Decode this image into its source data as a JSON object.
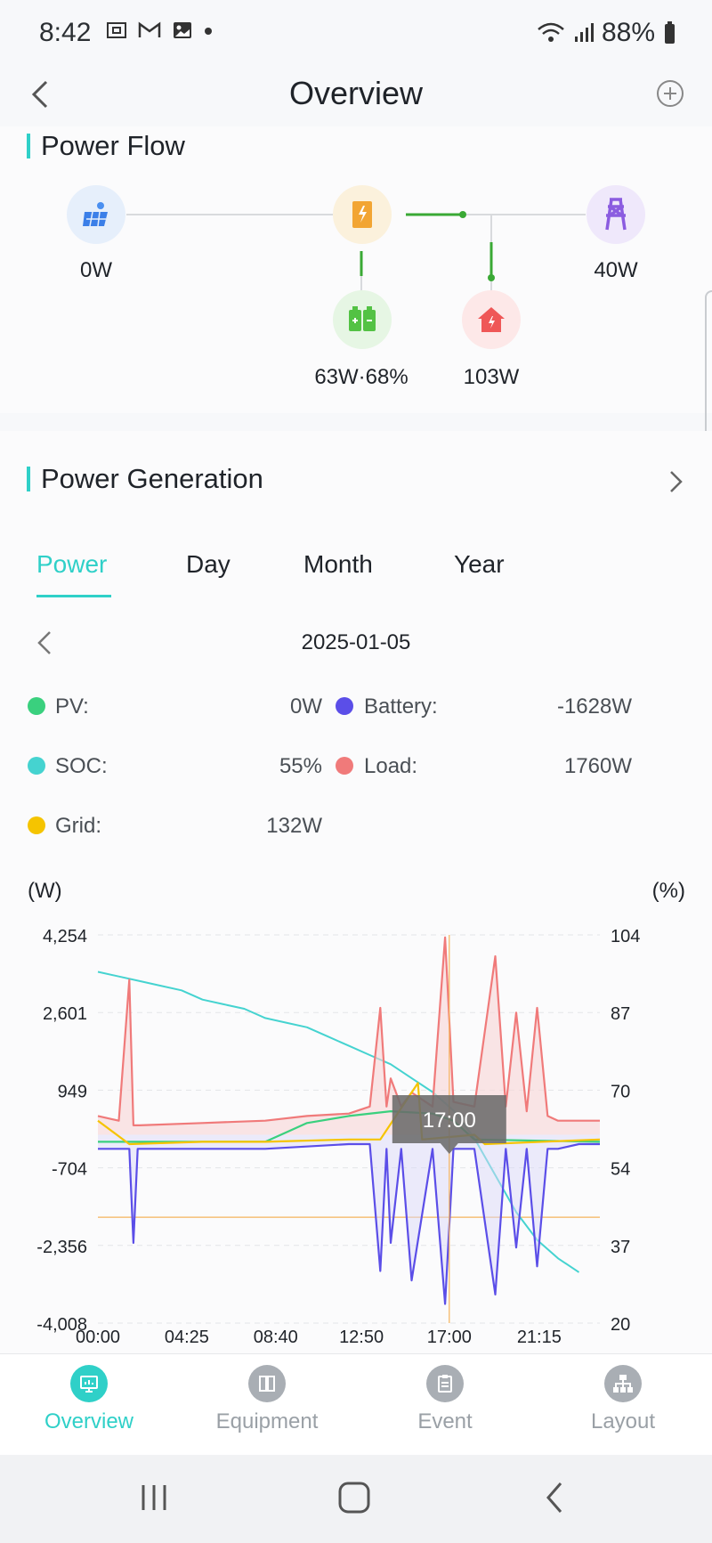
{
  "status_bar": {
    "time": "8:42",
    "battery": "88%"
  },
  "header": {
    "title": "Overview"
  },
  "power_flow": {
    "title": "Power Flow",
    "pv": "0W",
    "grid": "40W",
    "battery": "63W·68%",
    "load": "103W"
  },
  "power_generation": {
    "title": "Power Generation",
    "tabs": [
      "Power",
      "Day",
      "Month",
      "Year"
    ],
    "active_tab": "Power",
    "date": "2025-01-05",
    "legend": {
      "pv_label": "PV:",
      "pv_value": "0W",
      "battery_label": "Battery:",
      "battery_value": "-1628W",
      "soc_label": "SOC:",
      "soc_value": "55%",
      "load_label": "Load:",
      "load_value": "1760W",
      "grid_label": "Grid:",
      "grid_value": "132W"
    },
    "colors": {
      "pv": "#3ad07e",
      "battery": "#5b4ee8",
      "soc": "#45d3d0",
      "load": "#f07a7a",
      "grid": "#f5c400",
      "accent": "#2fd0c8"
    }
  },
  "chart_data": {
    "type": "line",
    "left_unit": "(W)",
    "right_unit": "(%)",
    "y_left_ticks": [
      "4,254",
      "2,601",
      "949",
      "-704",
      "-2,356",
      "-4,008"
    ],
    "y_right_ticks": [
      "104",
      "87",
      "70",
      "54",
      "37",
      "20"
    ],
    "x_ticks": [
      "00:00",
      "04:25",
      "08:40",
      "12:50",
      "17:00",
      "21:15"
    ],
    "ylim_left": [
      -4008,
      4254
    ],
    "ylim_right": [
      20,
      104
    ],
    "tooltip": "17:00",
    "grid": true,
    "series": [
      {
        "name": "SOC",
        "axis": "right",
        "points": [
          [
            0,
            96
          ],
          [
            1,
            95
          ],
          [
            2,
            94
          ],
          [
            3,
            93
          ],
          [
            4,
            92
          ],
          [
            5,
            90
          ],
          [
            6,
            89
          ],
          [
            7,
            88
          ],
          [
            8,
            86
          ],
          [
            9,
            85
          ],
          [
            10,
            84
          ],
          [
            11,
            82
          ],
          [
            12,
            80
          ],
          [
            13,
            78
          ],
          [
            14,
            76
          ],
          [
            15,
            73
          ],
          [
            16,
            70
          ],
          [
            17,
            66
          ],
          [
            18,
            60
          ],
          [
            19,
            52
          ],
          [
            20,
            44
          ],
          [
            21,
            38
          ],
          [
            22,
            34
          ],
          [
            23,
            31
          ]
        ]
      },
      {
        "name": "Load",
        "axis": "left",
        "points": [
          [
            0,
            400
          ],
          [
            1,
            300
          ],
          [
            1.5,
            3300
          ],
          [
            1.7,
            200
          ],
          [
            2,
            200
          ],
          [
            5,
            250
          ],
          [
            8,
            300
          ],
          [
            10,
            400
          ],
          [
            12,
            450
          ],
          [
            13,
            600
          ],
          [
            13.5,
            2700
          ],
          [
            13.8,
            600
          ],
          [
            14,
            1200
          ],
          [
            14.5,
            600
          ],
          [
            15,
            900
          ],
          [
            16,
            600
          ],
          [
            16.6,
            4200
          ],
          [
            17,
            700
          ],
          [
            18,
            600
          ],
          [
            19,
            3800
          ],
          [
            19.5,
            600
          ],
          [
            20,
            2600
          ],
          [
            20.5,
            500
          ],
          [
            21,
            2700
          ],
          [
            21.5,
            400
          ],
          [
            22,
            300
          ],
          [
            23,
            300
          ],
          [
            24,
            300
          ]
        ]
      },
      {
        "name": "Battery",
        "axis": "left",
        "points": [
          [
            0,
            -300
          ],
          [
            1.5,
            -300
          ],
          [
            1.7,
            -2300
          ],
          [
            1.9,
            -300
          ],
          [
            5,
            -300
          ],
          [
            8,
            -300
          ],
          [
            12,
            -200
          ],
          [
            13,
            -200
          ],
          [
            13.5,
            -2900
          ],
          [
            13.8,
            -300
          ],
          [
            14,
            -2300
          ],
          [
            14.5,
            -300
          ],
          [
            15,
            -3100
          ],
          [
            16,
            -300
          ],
          [
            16.6,
            -3600
          ],
          [
            17,
            -300
          ],
          [
            18,
            -300
          ],
          [
            19,
            -3400
          ],
          [
            19.5,
            -300
          ],
          [
            20,
            -2400
          ],
          [
            20.5,
            -300
          ],
          [
            21,
            -2800
          ],
          [
            21.5,
            -300
          ],
          [
            22,
            -300
          ],
          [
            23,
            -200
          ],
          [
            24,
            -200
          ]
        ]
      },
      {
        "name": "PV",
        "axis": "left",
        "points": [
          [
            0,
            -150
          ],
          [
            8,
            -150
          ],
          [
            10,
            250
          ],
          [
            12,
            400
          ],
          [
            14,
            500
          ],
          [
            16,
            450
          ],
          [
            17,
            300
          ],
          [
            18,
            -100
          ],
          [
            24,
            -150
          ]
        ]
      },
      {
        "name": "Grid",
        "axis": "left",
        "points": [
          [
            0,
            300
          ],
          [
            1.5,
            -200
          ],
          [
            5,
            -150
          ],
          [
            8,
            -150
          ],
          [
            12,
            -100
          ],
          [
            13.5,
            -100
          ],
          [
            15.3,
            1100
          ],
          [
            15.5,
            -100
          ],
          [
            18,
            0
          ],
          [
            18.5,
            -200
          ],
          [
            24,
            -100
          ]
        ]
      }
    ]
  },
  "bottom_nav": [
    {
      "label": "Overview",
      "active": true
    },
    {
      "label": "Equipment",
      "active": false
    },
    {
      "label": "Event",
      "active": false
    },
    {
      "label": "Layout",
      "active": false
    }
  ]
}
